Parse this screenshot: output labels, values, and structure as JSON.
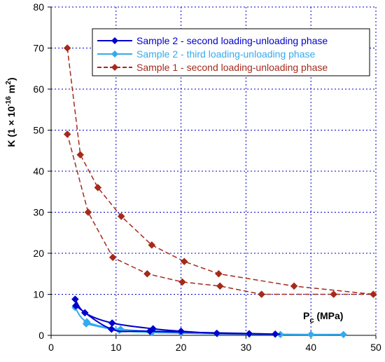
{
  "chart_data": {
    "type": "line",
    "ylabel": {
      "base": "K (1 × 10",
      "exp": "-16",
      "unit": " m",
      "unit_exp": "2",
      "close": ")"
    },
    "xlabel": {
      "base": "P",
      "sub": "c",
      "rest": " (MPa)"
    },
    "xlim": [
      0,
      50
    ],
    "ylim": [
      0,
      80
    ],
    "x_ticks": [
      "0",
      "10",
      "20",
      "30",
      "40",
      "50"
    ],
    "y_ticks": [
      "0",
      "10",
      "20",
      "30",
      "40",
      "50",
      "60",
      "70",
      "80"
    ],
    "grid": true,
    "legend_position": "top-right",
    "series": [
      {
        "name": "Sample 2 - second loading-unloading phase",
        "color": "#0000cc",
        "line": "solid",
        "marker": "diamond",
        "points": [
          [
            3.7,
            8.8
          ],
          [
            5.2,
            5.5
          ],
          [
            9.4,
            3.0
          ],
          [
            15.7,
            1.6
          ],
          [
            20.0,
            1.0
          ],
          [
            25.5,
            0.5
          ],
          [
            30.5,
            0.4
          ],
          [
            34.5,
            0.3
          ],
          [
            15.2,
            1.0
          ],
          [
            9.3,
            1.5
          ],
          [
            3.8,
            7.2
          ]
        ]
      },
      {
        "name": "Sample 2 - third loading-unloading phase",
        "color": "#33aaee",
        "line": "solid",
        "marker": "diamond",
        "points": [
          [
            3.7,
            6.8
          ],
          [
            5.5,
            3.3
          ],
          [
            10.7,
            1.5
          ],
          [
            20.0,
            0.6
          ],
          [
            30.5,
            0.3
          ],
          [
            40.0,
            0.2
          ],
          [
            45.0,
            0.2
          ],
          [
            35.3,
            0.2
          ],
          [
            25.6,
            0.4
          ],
          [
            15.5,
            0.7
          ],
          [
            10.5,
            1.2
          ],
          [
            5.4,
            2.8
          ]
        ]
      },
      {
        "name": "Sample 1 - second loading-unloading phase",
        "color": "#a52a1a",
        "line": "dashed",
        "marker": "diamond",
        "points": [
          [
            2.5,
            70.0
          ],
          [
            4.5,
            44.0
          ],
          [
            7.2,
            36.0
          ],
          [
            10.8,
            29.0
          ],
          [
            15.5,
            22.0
          ],
          [
            20.5,
            18.0
          ],
          [
            25.8,
            15.0
          ],
          [
            37.4,
            12.0
          ],
          [
            49.6,
            10.0
          ],
          [
            43.5,
            10.0
          ],
          [
            32.4,
            10.0
          ],
          [
            26.0,
            12.0
          ],
          [
            20.2,
            13.0
          ],
          [
            14.8,
            15.0
          ],
          [
            9.5,
            19.0
          ],
          [
            5.7,
            30.0
          ],
          [
            2.5,
            49.0
          ]
        ]
      }
    ]
  }
}
